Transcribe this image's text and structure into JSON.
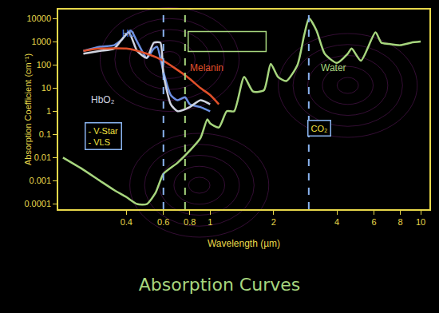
{
  "chart_data": {
    "type": "line",
    "title": "Absorption Curves",
    "x_label": "Wavelength (µm)",
    "y_label": "Absorption Coefficient (cm⁻¹)",
    "log": true,
    "grid": false,
    "xlim": [
      0.19,
      11
    ],
    "xticks": [
      0.4,
      0.6,
      0.8,
      1,
      2,
      4,
      6,
      8,
      10
    ],
    "ylim": [
      6e-05,
      24000
    ],
    "yticks": [
      10000,
      1000,
      100,
      10,
      1,
      0.1,
      0.01,
      0.001,
      0.0001
    ],
    "series": [
      {
        "name": "Hb",
        "color": "#6b8fe0",
        "label": {
          "x": 0.41,
          "y": 2200
        },
        "x": [
          0.25,
          0.3,
          0.35,
          0.38,
          0.42,
          0.45,
          0.5,
          0.54,
          0.56,
          0.6,
          0.65,
          0.7,
          0.76,
          0.8,
          0.9,
          1.0
        ],
        "values": [
          400,
          600,
          700,
          1200,
          3000,
          1000,
          200,
          500,
          600,
          50,
          5,
          3,
          4,
          2,
          1.5,
          1
        ]
      },
      {
        "name": "HbO₂",
        "color": "#d0d4e0",
        "label": {
          "x": 0.31,
          "y": 3
        },
        "x": [
          0.25,
          0.3,
          0.35,
          0.41,
          0.45,
          0.5,
          0.54,
          0.58,
          0.6,
          0.65,
          0.7,
          0.8,
          0.9,
          1.0
        ],
        "values": [
          300,
          400,
          500,
          2500,
          400,
          200,
          900,
          900,
          40,
          2,
          1,
          1.5,
          3,
          2
        ]
      },
      {
        "name": "Melanin",
        "color": "#e0502a",
        "label": {
          "x": 0.96,
          "y": 72
        },
        "x": [
          0.25,
          0.3,
          0.4,
          0.5,
          0.6,
          0.7,
          0.8,
          0.9,
          1.0,
          1.1
        ],
        "values": [
          400,
          500,
          500,
          300,
          150,
          60,
          25,
          10,
          5,
          2
        ]
      },
      {
        "name": "Water",
        "color": "#a7d67e",
        "label": {
          "x": 3.86,
          "y": 72
        },
        "x": [
          0.2,
          0.25,
          0.3,
          0.35,
          0.4,
          0.45,
          0.5,
          0.55,
          0.6,
          0.7,
          0.8,
          0.9,
          0.97,
          1.0,
          1.1,
          1.2,
          1.3,
          1.45,
          1.6,
          1.8,
          1.94,
          2.1,
          2.3,
          2.6,
          2.8,
          2.95,
          3.2,
          3.5,
          4.0,
          4.5,
          4.7,
          5.2,
          6.1,
          6.5,
          7,
          8,
          9,
          10
        ],
        "values": [
          0.01,
          0.003,
          0.001,
          0.0004,
          0.0002,
          0.0001,
          0.0001,
          0.0003,
          0.002,
          0.006,
          0.02,
          0.07,
          0.45,
          0.3,
          0.2,
          1,
          1,
          30,
          7,
          8,
          110,
          30,
          20,
          100,
          2000,
          10000,
          3000,
          300,
          120,
          300,
          500,
          150,
          2500,
          900,
          800,
          700,
          900,
          1000
        ]
      }
    ],
    "vlines": [
      {
        "x": 0.6,
        "color": "#8ab4f0",
        "line_style": "dash"
      },
      {
        "x": 0.76,
        "color": "#a7d67e",
        "line_style": "dash"
      },
      {
        "x": 2.94,
        "color": "#8ab4f0",
        "line_style": "dash"
      }
    ],
    "annotations": [
      {
        "text": "- V-Star\n- VLS",
        "x": 0.31,
        "y": 0.085,
        "color": "#f0e040"
      },
      {
        "text": "CO₂",
        "x": 3.3,
        "y": 0.19,
        "color": "#f0e040"
      }
    ]
  }
}
